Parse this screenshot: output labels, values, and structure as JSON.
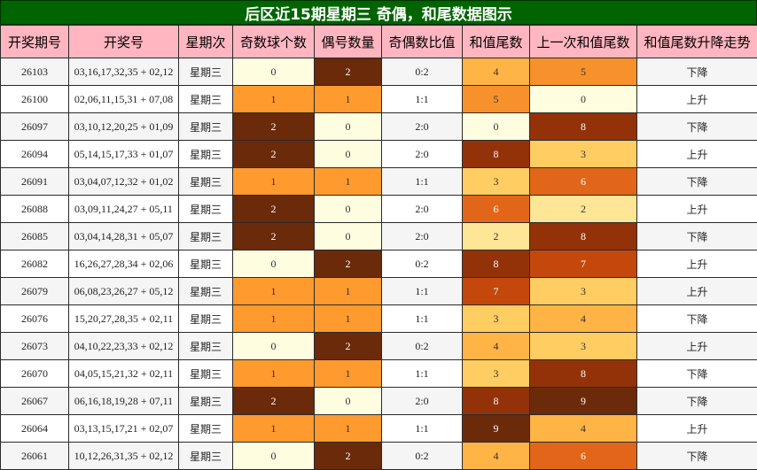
{
  "title": "后区近15期星期三 奇偶，和尾数据图示",
  "headers": [
    "开奖期号",
    "开奖号",
    "星期次",
    "奇数球个数",
    "偶号数量",
    "奇偶数比值",
    "和值尾数",
    "上一次和值尾数",
    "和值尾数升降走势"
  ],
  "chart_data": {
    "type": "table",
    "columns": [
      "开奖期号",
      "开奖号",
      "星期次",
      "奇数球个数",
      "偶号数量",
      "奇偶数比值",
      "和值尾数",
      "上一次和值尾数",
      "和值尾数升降走势"
    ],
    "rows": [
      [
        "26103",
        "03,16,17,32,35 + 02,12",
        "星期三",
        "0",
        "2",
        "0:2",
        "4",
        "5",
        "下降"
      ],
      [
        "26100",
        "02,06,11,15,31 + 07,08",
        "星期三",
        "1",
        "1",
        "1:1",
        "5",
        "0",
        "上升"
      ],
      [
        "26097",
        "03,10,12,20,25 + 01,09",
        "星期三",
        "2",
        "0",
        "2:0",
        "0",
        "8",
        "下降"
      ],
      [
        "26094",
        "05,14,15,17,33 + 01,07",
        "星期三",
        "2",
        "0",
        "2:0",
        "8",
        "3",
        "上升"
      ],
      [
        "26091",
        "03,04,07,12,32 + 01,02",
        "星期三",
        "1",
        "1",
        "1:1",
        "3",
        "6",
        "下降"
      ],
      [
        "26088",
        "03,09,11,24,27 + 05,11",
        "星期三",
        "2",
        "0",
        "2:0",
        "6",
        "2",
        "上升"
      ],
      [
        "26085",
        "03,04,14,28,31 + 05,07",
        "星期三",
        "2",
        "0",
        "2:0",
        "2",
        "8",
        "下降"
      ],
      [
        "26082",
        "16,26,27,28,34 + 02,06",
        "星期三",
        "0",
        "2",
        "0:2",
        "8",
        "7",
        "上升"
      ],
      [
        "26079",
        "06,08,23,26,27 + 05,12",
        "星期三",
        "1",
        "1",
        "1:1",
        "7",
        "3",
        "上升"
      ],
      [
        "26076",
        "15,20,27,28,35 + 02,11",
        "星期三",
        "1",
        "1",
        "1:1",
        "3",
        "4",
        "下降"
      ],
      [
        "26073",
        "04,10,22,23,33 + 02,12",
        "星期三",
        "0",
        "2",
        "0:2",
        "4",
        "3",
        "上升"
      ],
      [
        "26070",
        "04,05,15,21,32 + 02,11",
        "星期三",
        "1",
        "1",
        "1:1",
        "3",
        "8",
        "下降"
      ],
      [
        "26067",
        "06,16,18,19,28 + 07,11",
        "星期三",
        "2",
        "0",
        "2:0",
        "8",
        "9",
        "下降"
      ],
      [
        "26064",
        "03,13,15,17,21 + 02,07",
        "星期三",
        "1",
        "1",
        "1:1",
        "9",
        "4",
        "上升"
      ],
      [
        "26061",
        "10,12,26,31,35 + 02,12",
        "星期三",
        "0",
        "2",
        "0:2",
        "4",
        "6",
        "下降"
      ]
    ]
  },
  "colors": {
    "title_bg": "#006400",
    "header_bg": "#ffb6c1",
    "count_colors": {
      "0": "#fffde0",
      "1": "#ff9a2e",
      "2": "#6b2a0a"
    },
    "tail_colors": {
      "0": "#fffde0",
      "1": "#fff3c0",
      "2": "#ffe596",
      "3": "#ffcd62",
      "4": "#ffb445",
      "5": "#f7912c",
      "6": "#e2661a",
      "7": "#c4480c",
      "8": "#933208",
      "9": "#6b2a0a"
    }
  }
}
